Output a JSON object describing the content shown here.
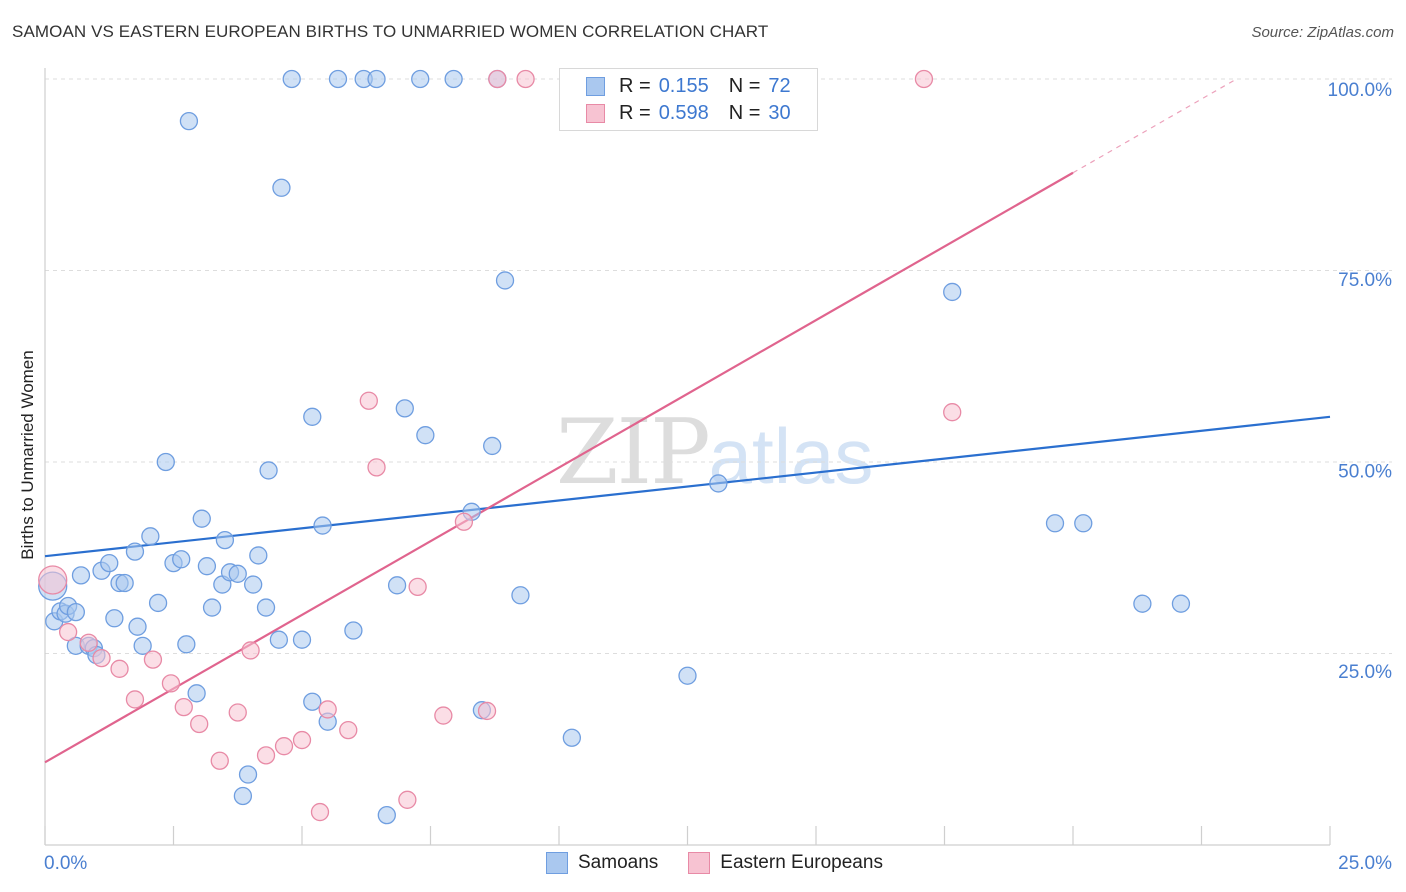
{
  "header": {
    "title": "SAMOAN VS EASTERN EUROPEAN BIRTHS TO UNMARRIED WOMEN CORRELATION CHART",
    "source": "Source: ZipAtlas.com"
  },
  "watermark": {
    "zip": "ZIP",
    "atlas": "atlas"
  },
  "legend": {
    "samoans": {
      "r_label": "R =",
      "r_value": "0.155",
      "n_label": "N =",
      "n_value": "72"
    },
    "eastern": {
      "r_label": "R =",
      "r_value": "0.598",
      "n_label": "N =",
      "n_value": "30"
    }
  },
  "bottom_legend": {
    "samoans": "Samoans",
    "eastern": "Eastern Europeans"
  },
  "colors": {
    "samoans_fill": "#aac8ef",
    "samoans_stroke": "#6f9ee0",
    "samoans_line": "#2a6fcf",
    "eastern_fill": "#f7c3d2",
    "eastern_stroke": "#e88aa6",
    "eastern_line": "#e0648e",
    "tick_label": "#4a7fd0",
    "grid": "#dddddd"
  },
  "chart_data": {
    "type": "scatter",
    "title": "SAMOAN VS EASTERN EUROPEAN BIRTHS TO UNMARRIED WOMEN CORRELATION CHART",
    "ylabel": "Births to Unmarried Women",
    "xlabel": "",
    "xlim": [
      0,
      25
    ],
    "ylim": [
      0,
      100
    ],
    "x_tick_labels": [
      "0.0%",
      "25.0%"
    ],
    "y_tick_labels": [
      "25.0%",
      "50.0%",
      "75.0%",
      "100.0%"
    ],
    "y_ticks": [
      25,
      50,
      75,
      100
    ],
    "grid": "horizontal dashed",
    "legend_position": "top-center",
    "series": [
      {
        "name": "Samoans",
        "r": 0.155,
        "n": 72,
        "trend": {
          "x0": 0,
          "y0": 37.7,
          "x1": 25,
          "y1": 55.9
        },
        "points": [
          [
            0.15,
            33.8
          ],
          [
            0.18,
            29.2
          ],
          [
            0.3,
            30.5
          ],
          [
            0.4,
            30.2
          ],
          [
            0.45,
            31.2
          ],
          [
            0.6,
            30.4
          ],
          [
            0.6,
            26.0
          ],
          [
            0.7,
            35.2
          ],
          [
            0.85,
            26.0
          ],
          [
            0.95,
            25.7
          ],
          [
            1.0,
            24.8
          ],
          [
            1.1,
            35.8
          ],
          [
            1.25,
            36.8
          ],
          [
            1.35,
            29.6
          ],
          [
            1.45,
            34.2
          ],
          [
            1.55,
            34.2
          ],
          [
            1.75,
            38.3
          ],
          [
            1.8,
            28.5
          ],
          [
            1.9,
            26.0
          ],
          [
            2.05,
            40.3
          ],
          [
            2.2,
            31.6
          ],
          [
            2.35,
            50.0
          ],
          [
            2.5,
            36.8
          ],
          [
            2.65,
            37.3
          ],
          [
            2.75,
            26.2
          ],
          [
            2.95,
            19.8
          ],
          [
            3.05,
            42.6
          ],
          [
            3.15,
            36.4
          ],
          [
            3.25,
            31.0
          ],
          [
            3.45,
            34.0
          ],
          [
            3.5,
            39.8
          ],
          [
            3.6,
            35.6
          ],
          [
            3.75,
            35.4
          ],
          [
            3.85,
            6.4
          ],
          [
            3.95,
            9.2
          ],
          [
            4.05,
            34.0
          ],
          [
            4.15,
            37.8
          ],
          [
            4.3,
            31.0
          ],
          [
            4.35,
            48.9
          ],
          [
            4.55,
            26.8
          ],
          [
            4.6,
            85.8
          ],
          [
            4.8,
            100.0
          ],
          [
            5.0,
            26.8
          ],
          [
            5.2,
            55.9
          ],
          [
            5.2,
            18.7
          ],
          [
            5.4,
            41.7
          ],
          [
            5.5,
            16.1
          ],
          [
            5.7,
            100.0
          ],
          [
            6.0,
            28.0
          ],
          [
            6.2,
            100.0
          ],
          [
            6.45,
            100.0
          ],
          [
            6.65,
            3.9
          ],
          [
            6.85,
            33.9
          ],
          [
            7.0,
            57.0
          ],
          [
            7.3,
            100.0
          ],
          [
            7.4,
            53.5
          ],
          [
            7.95,
            100.0
          ],
          [
            8.3,
            43.5
          ],
          [
            8.5,
            17.6
          ],
          [
            8.7,
            52.1
          ],
          [
            8.8,
            100.0
          ],
          [
            8.95,
            73.7
          ],
          [
            9.25,
            32.6
          ],
          [
            10.25,
            14.0
          ],
          [
            12.5,
            22.1
          ],
          [
            13.1,
            47.2
          ],
          [
            17.65,
            72.2
          ],
          [
            19.65,
            42.0
          ],
          [
            20.2,
            42.0
          ],
          [
            21.35,
            31.5
          ],
          [
            22.1,
            31.5
          ],
          [
            2.8,
            94.5
          ]
        ]
      },
      {
        "name": "Eastern Europeans",
        "r": 0.598,
        "n": 30,
        "trend": {
          "x0": 0,
          "y0": 10.8,
          "x1": 25,
          "y1": 107.0,
          "solid_until_x": 20
        },
        "points": [
          [
            0.15,
            34.6
          ],
          [
            0.45,
            27.8
          ],
          [
            0.85,
            26.4
          ],
          [
            1.1,
            24.4
          ],
          [
            1.45,
            23.0
          ],
          [
            1.75,
            19.0
          ],
          [
            2.1,
            24.2
          ],
          [
            2.45,
            21.1
          ],
          [
            2.7,
            18.0
          ],
          [
            3.0,
            15.8
          ],
          [
            3.4,
            11.0
          ],
          [
            3.75,
            17.3
          ],
          [
            4.0,
            25.4
          ],
          [
            4.3,
            11.7
          ],
          [
            4.65,
            12.9
          ],
          [
            5.0,
            13.7
          ],
          [
            5.35,
            4.3
          ],
          [
            5.5,
            17.7
          ],
          [
            5.9,
            15.0
          ],
          [
            6.3,
            58.0
          ],
          [
            6.45,
            49.3
          ],
          [
            7.05,
            5.9
          ],
          [
            7.25,
            33.7
          ],
          [
            7.75,
            16.9
          ],
          [
            8.15,
            42.2
          ],
          [
            8.6,
            17.5
          ],
          [
            8.8,
            100.0
          ],
          [
            9.35,
            100.0
          ],
          [
            17.1,
            100.0
          ],
          [
            17.65,
            56.5
          ]
        ]
      }
    ]
  }
}
